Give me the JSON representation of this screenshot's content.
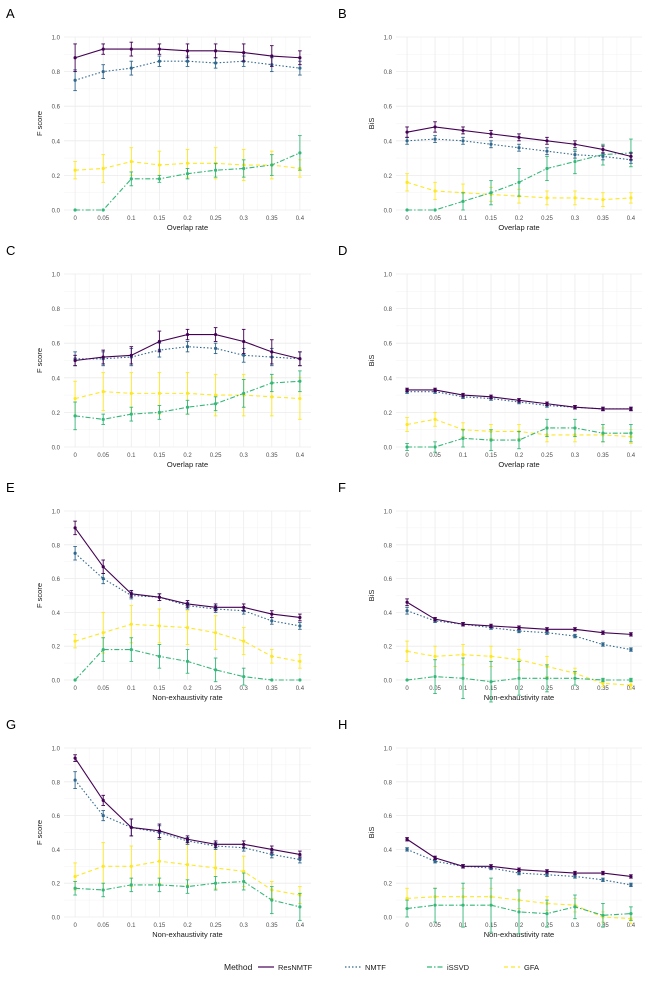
{
  "colors": {
    "ResNMTF": "#440154",
    "NMTF": "#31688e",
    "iSSVD": "#35b779",
    "GFA": "#fde725",
    "grid": "#ebebeb",
    "text": "#1a1a1a",
    "tick": "#4d4d4d"
  },
  "legend": {
    "title": "Method",
    "items": [
      {
        "name": "ResNMTF",
        "dash": "solid"
      },
      {
        "name": "NMTF",
        "dash": "dotted"
      },
      {
        "name": "iSSVD",
        "dash": "dashdot"
      },
      {
        "name": "GFA",
        "dash": "dashed"
      }
    ]
  },
  "chart_data": [
    {
      "panel": "A",
      "type": "line",
      "xlabel": "Overlap rate",
      "ylabel": "F score",
      "ylim": [
        0,
        1
      ],
      "x": [
        "0",
        "0.05",
        "0.1",
        "0.15",
        "0.2",
        "0.25",
        "0.3",
        "0.35",
        "0.4"
      ],
      "yticks": [
        "0.0",
        "0.2",
        "0.4",
        "0.6",
        "0.8",
        "1.0"
      ],
      "series": [
        {
          "name": "ResNMTF",
          "values": [
            0.88,
            0.93,
            0.93,
            0.93,
            0.92,
            0.92,
            0.91,
            0.89,
            0.88
          ],
          "err": [
            0.08,
            0.03,
            0.04,
            0.03,
            0.04,
            0.04,
            0.05,
            0.06,
            0.04
          ]
        },
        {
          "name": "NMTF",
          "values": [
            0.75,
            0.8,
            0.82,
            0.86,
            0.86,
            0.85,
            0.86,
            0.84,
            0.82
          ],
          "err": [
            0.06,
            0.04,
            0.04,
            0.03,
            0.03,
            0.03,
            0.03,
            0.04,
            0.04
          ]
        },
        {
          "name": "iSSVD",
          "values": [
            0.0,
            0.0,
            0.18,
            0.18,
            0.21,
            0.23,
            0.24,
            0.26,
            0.33
          ],
          "err": [
            0,
            0,
            0.04,
            0.02,
            0.03,
            0.04,
            0.05,
            0.06,
            0.1
          ]
        },
        {
          "name": "GFA",
          "values": [
            0.23,
            0.24,
            0.28,
            0.26,
            0.27,
            0.27,
            0.26,
            0.26,
            0.24
          ],
          "err": [
            0.05,
            0.08,
            0.08,
            0.08,
            0.08,
            0.09,
            0.09,
            0.08,
            0.05
          ]
        }
      ]
    },
    {
      "panel": "B",
      "type": "line",
      "xlabel": "Overlap rate",
      "ylabel": "BiS",
      "ylim": [
        0,
        1
      ],
      "x": [
        "0",
        "0.05",
        "0.1",
        "0.15",
        "0.2",
        "0.25",
        "0.3",
        "0.35",
        "0.4"
      ],
      "yticks": [
        "0.0",
        "0.2",
        "0.4",
        "0.6",
        "0.8",
        "1.0"
      ],
      "series": [
        {
          "name": "ResNMTF",
          "values": [
            0.45,
            0.48,
            0.46,
            0.44,
            0.42,
            0.4,
            0.38,
            0.35,
            0.31
          ],
          "err": [
            0.03,
            0.03,
            0.02,
            0.02,
            0.02,
            0.02,
            0.02,
            0.02,
            0.02
          ]
        },
        {
          "name": "NMTF",
          "values": [
            0.4,
            0.41,
            0.4,
            0.38,
            0.36,
            0.34,
            0.32,
            0.31,
            0.29
          ],
          "err": [
            0.02,
            0.02,
            0.02,
            0.02,
            0.02,
            0.02,
            0.02,
            0.02,
            0.02
          ]
        },
        {
          "name": "iSSVD",
          "values": [
            0.0,
            0.0,
            0.05,
            0.1,
            0.16,
            0.24,
            0.28,
            0.32,
            0.33
          ],
          "err": [
            0,
            0,
            0.05,
            0.07,
            0.08,
            0.07,
            0.07,
            0.06,
            0.08
          ]
        },
        {
          "name": "GFA",
          "values": [
            0.16,
            0.11,
            0.1,
            0.09,
            0.08,
            0.07,
            0.07,
            0.06,
            0.07
          ],
          "err": [
            0.05,
            0.05,
            0.05,
            0.04,
            0.04,
            0.04,
            0.04,
            0.04,
            0.03
          ]
        }
      ]
    },
    {
      "panel": "C",
      "type": "line",
      "xlabel": "Overlap rate",
      "ylabel": "F score",
      "ylim": [
        0,
        1
      ],
      "x": [
        "0",
        "0.05",
        "0.1",
        "0.15",
        "0.2",
        "0.25",
        "0.3",
        "0.35",
        "0.4"
      ],
      "yticks": [
        "0.0",
        "0.2",
        "0.4",
        "0.6",
        "0.8",
        "1.0"
      ],
      "series": [
        {
          "name": "ResNMTF",
          "values": [
            0.5,
            0.52,
            0.53,
            0.61,
            0.65,
            0.65,
            0.61,
            0.55,
            0.51
          ],
          "err": [
            0.03,
            0.04,
            0.05,
            0.06,
            0.03,
            0.04,
            0.07,
            0.07,
            0.04
          ]
        },
        {
          "name": "NMTF",
          "values": [
            0.51,
            0.51,
            0.52,
            0.56,
            0.58,
            0.57,
            0.53,
            0.52,
            0.51
          ],
          "err": [
            0.04,
            0.04,
            0.05,
            0.04,
            0.03,
            0.03,
            0.04,
            0.05,
            0.04
          ]
        },
        {
          "name": "iSSVD",
          "values": [
            0.18,
            0.16,
            0.19,
            0.2,
            0.23,
            0.25,
            0.31,
            0.37,
            0.38
          ],
          "err": [
            0.08,
            0.03,
            0.04,
            0.04,
            0.04,
            0.04,
            0.08,
            0.05,
            0.06
          ]
        },
        {
          "name": "GFA",
          "values": [
            0.28,
            0.32,
            0.31,
            0.31,
            0.31,
            0.3,
            0.3,
            0.29,
            0.28
          ],
          "err": [
            0.1,
            0.11,
            0.12,
            0.12,
            0.12,
            0.12,
            0.12,
            0.11,
            0.12
          ]
        }
      ]
    },
    {
      "panel": "D",
      "type": "line",
      "xlabel": "Overlap rate",
      "ylabel": "BiS",
      "ylim": [
        0,
        1
      ],
      "x": [
        "0",
        "0.05",
        "0.1",
        "0.15",
        "0.2",
        "0.25",
        "0.3",
        "0.35",
        "0.4"
      ],
      "yticks": [
        "0.0",
        "0.2",
        "0.4",
        "0.6",
        "0.8",
        "1.0"
      ],
      "series": [
        {
          "name": "ResNMTF",
          "values": [
            0.33,
            0.33,
            0.3,
            0.29,
            0.27,
            0.25,
            0.23,
            0.22,
            0.22
          ],
          "err": [
            0.01,
            0.01,
            0.01,
            0.01,
            0.01,
            0.01,
            0.01,
            0.01,
            0.01
          ]
        },
        {
          "name": "NMTF",
          "values": [
            0.32,
            0.32,
            0.29,
            0.28,
            0.26,
            0.24,
            0.23,
            0.22,
            0.22
          ],
          "err": [
            0.01,
            0.01,
            0.01,
            0.01,
            0.01,
            0.01,
            0.01,
            0.01,
            0.01
          ]
        },
        {
          "name": "iSSVD",
          "values": [
            0.0,
            0.0,
            0.05,
            0.04,
            0.04,
            0.11,
            0.11,
            0.08,
            0.08
          ],
          "err": [
            0.02,
            0.03,
            0.05,
            0.06,
            0.05,
            0.05,
            0.05,
            0.05,
            0.05
          ]
        },
        {
          "name": "GFA",
          "values": [
            0.13,
            0.16,
            0.1,
            0.09,
            0.09,
            0.07,
            0.07,
            0.07,
            0.06
          ],
          "err": [
            0.04,
            0.04,
            0.04,
            0.04,
            0.04,
            0.04,
            0.04,
            0.04,
            0.04
          ]
        }
      ]
    },
    {
      "panel": "E",
      "type": "line",
      "xlabel": "Non-exhaustivity rate",
      "ylabel": "F score",
      "ylim": [
        0,
        1
      ],
      "x": [
        "0",
        "0.05",
        "0.1",
        "0.15",
        "0.2",
        "0.25",
        "0.3",
        "0.35",
        "0.4"
      ],
      "yticks": [
        "0.0",
        "0.2",
        "0.4",
        "0.6",
        "0.8",
        "1.0"
      ],
      "series": [
        {
          "name": "ResNMTF",
          "values": [
            0.9,
            0.67,
            0.51,
            0.49,
            0.45,
            0.43,
            0.43,
            0.39,
            0.37
          ],
          "err": [
            0.04,
            0.04,
            0.02,
            0.02,
            0.02,
            0.02,
            0.02,
            0.02,
            0.02
          ]
        },
        {
          "name": "NMTF",
          "values": [
            0.75,
            0.6,
            0.5,
            0.49,
            0.44,
            0.42,
            0.41,
            0.35,
            0.32
          ],
          "err": [
            0.04,
            0.03,
            0.02,
            0.02,
            0.02,
            0.02,
            0.02,
            0.02,
            0.02
          ]
        },
        {
          "name": "iSSVD",
          "values": [
            0.0,
            0.18,
            0.18,
            0.14,
            0.11,
            0.06,
            0.02,
            0.0,
            0.0
          ],
          "err": [
            0,
            0.07,
            0.07,
            0.07,
            0.07,
            0.07,
            0.05,
            0,
            0
          ]
        },
        {
          "name": "GFA",
          "values": [
            0.23,
            0.28,
            0.33,
            0.32,
            0.31,
            0.28,
            0.23,
            0.14,
            0.11
          ],
          "err": [
            0.04,
            0.12,
            0.11,
            0.1,
            0.1,
            0.1,
            0.08,
            0.04,
            0.04
          ]
        }
      ]
    },
    {
      "panel": "F",
      "type": "line",
      "xlabel": "Non-exhaustivity rate",
      "ylabel": "BiS",
      "ylim": [
        0,
        1
      ],
      "x": [
        "0",
        "0.05",
        "0.1",
        "0.15",
        "0.2",
        "0.25",
        "0.3",
        "0.35",
        "0.4"
      ],
      "yticks": [
        "0.0",
        "0.2",
        "0.4",
        "0.6",
        "0.8",
        "1.0"
      ],
      "series": [
        {
          "name": "ResNMTF",
          "values": [
            0.46,
            0.36,
            0.33,
            0.32,
            0.31,
            0.3,
            0.3,
            0.28,
            0.27
          ],
          "err": [
            0.02,
            0.01,
            0.01,
            0.01,
            0.01,
            0.01,
            0.01,
            0.01,
            0.01
          ]
        },
        {
          "name": "NMTF",
          "values": [
            0.41,
            0.35,
            0.33,
            0.31,
            0.29,
            0.28,
            0.26,
            0.21,
            0.18
          ],
          "err": [
            0.02,
            0.01,
            0.01,
            0.01,
            0.01,
            0.01,
            0.01,
            0.01,
            0.01
          ]
        },
        {
          "name": "iSSVD",
          "values": [
            0.0,
            0.02,
            0.01,
            -0.01,
            0.01,
            0.01,
            0.01,
            0.0,
            0.0
          ],
          "err": [
            0,
            0.1,
            0.12,
            0.12,
            0.1,
            0.08,
            0.04,
            0.01,
            0.01
          ]
        },
        {
          "name": "GFA",
          "values": [
            0.17,
            0.14,
            0.15,
            0.14,
            0.12,
            0.08,
            0.04,
            -0.02,
            -0.03
          ],
          "err": [
            0.06,
            0.06,
            0.06,
            0.06,
            0.06,
            0.06,
            0.03,
            0.02,
            0.02
          ]
        }
      ]
    },
    {
      "panel": "G",
      "type": "line",
      "xlabel": "Non-exhaustivity rate",
      "ylabel": "F score",
      "ylim": [
        0,
        1
      ],
      "x": [
        "0",
        "0.05",
        "0.1",
        "0.15",
        "0.2",
        "0.25",
        "0.3",
        "0.35",
        "0.4"
      ],
      "yticks": [
        "0.0",
        "0.2",
        "0.4",
        "0.6",
        "0.8",
        "1.0"
      ],
      "series": [
        {
          "name": "ResNMTF",
          "values": [
            0.94,
            0.69,
            0.53,
            0.51,
            0.46,
            0.43,
            0.43,
            0.4,
            0.37
          ],
          "err": [
            0.02,
            0.03,
            0.05,
            0.04,
            0.02,
            0.02,
            0.02,
            0.02,
            0.02
          ]
        },
        {
          "name": "NMTF",
          "values": [
            0.81,
            0.6,
            0.53,
            0.5,
            0.45,
            0.42,
            0.41,
            0.37,
            0.34
          ],
          "err": [
            0.05,
            0.03,
            0.05,
            0.04,
            0.02,
            0.02,
            0.02,
            0.02,
            0.02
          ]
        },
        {
          "name": "iSSVD",
          "values": [
            0.17,
            0.16,
            0.19,
            0.19,
            0.18,
            0.2,
            0.21,
            0.1,
            0.06
          ],
          "err": [
            0.04,
            0.04,
            0.04,
            0.04,
            0.04,
            0.04,
            0.05,
            0.08,
            0.08
          ]
        },
        {
          "name": "GFA",
          "values": [
            0.24,
            0.3,
            0.3,
            0.33,
            0.31,
            0.29,
            0.27,
            0.16,
            0.13
          ],
          "err": [
            0.08,
            0.14,
            0.12,
            0.13,
            0.12,
            0.12,
            0.09,
            0.05,
            0.05
          ]
        }
      ]
    },
    {
      "panel": "H",
      "type": "line",
      "xlabel": "Non-exhaustivity rate",
      "ylabel": "BiS",
      "ylim": [
        0,
        1
      ],
      "x": [
        "0",
        "0.05",
        "0.1",
        "0.15",
        "0.2",
        "0.25",
        "0.3",
        "0.35",
        "0.4"
      ],
      "yticks": [
        "0.0",
        "0.2",
        "0.4",
        "0.6",
        "0.8",
        "1.0"
      ],
      "series": [
        {
          "name": "ResNMTF",
          "values": [
            0.46,
            0.35,
            0.3,
            0.3,
            0.28,
            0.27,
            0.26,
            0.26,
            0.24
          ],
          "err": [
            0.01,
            0.01,
            0.01,
            0.01,
            0.01,
            0.01,
            0.01,
            0.01,
            0.01
          ]
        },
        {
          "name": "NMTF",
          "values": [
            0.4,
            0.33,
            0.3,
            0.29,
            0.26,
            0.25,
            0.24,
            0.22,
            0.19
          ],
          "err": [
            0.01,
            0.01,
            0.01,
            0.01,
            0.01,
            0.01,
            0.01,
            0.01,
            0.01
          ]
        },
        {
          "name": "iSSVD",
          "values": [
            0.05,
            0.07,
            0.07,
            0.07,
            0.03,
            0.02,
            0.06,
            0.01,
            0.02
          ],
          "err": [
            0.05,
            0.1,
            0.13,
            0.16,
            0.13,
            0.08,
            0.07,
            0.07,
            0.04
          ]
        },
        {
          "name": "GFA",
          "values": [
            0.11,
            0.12,
            0.12,
            0.12,
            0.1,
            0.08,
            0.07,
            0.0,
            -0.01
          ],
          "err": [
            0.06,
            0.05,
            0.05,
            0.05,
            0.05,
            0.04,
            0.04,
            0.03,
            0.03
          ]
        }
      ]
    }
  ]
}
